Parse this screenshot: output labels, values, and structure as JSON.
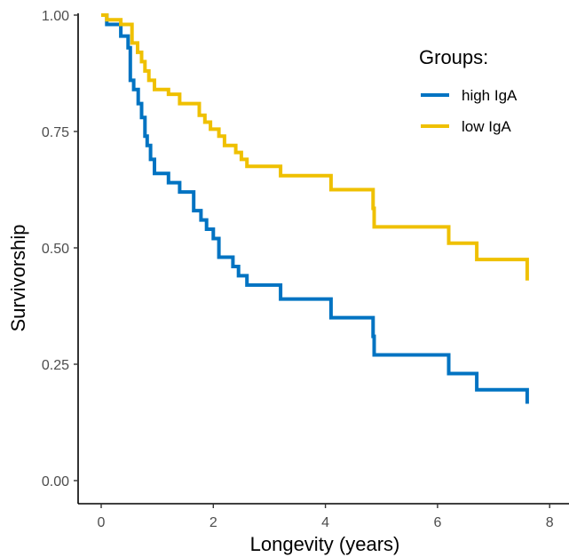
{
  "chart_data": {
    "type": "line",
    "step": true,
    "title": "",
    "xlabel": "Longevity (years)",
    "ylabel": "Survivorship",
    "xlim": [
      -0.4,
      8.0
    ],
    "ylim": [
      -0.05,
      1.0
    ],
    "x_ticks": [
      0,
      2,
      4,
      6,
      8
    ],
    "x_tick_labels": [
      "0",
      "2",
      "4",
      "6",
      "8"
    ],
    "y_ticks": [
      0,
      0.25,
      0.5,
      0.75,
      1.0
    ],
    "y_tick_labels": [
      "0.00",
      "0.25",
      "0.50",
      "0.75",
      "1.00"
    ],
    "grid": false,
    "legend": {
      "title": "Groups:",
      "position": "top-right"
    },
    "series": [
      {
        "name": "high IgA",
        "color": "#0073C2",
        "points": [
          [
            0,
            1.0
          ],
          [
            0.1,
            0.98
          ],
          [
            0.35,
            0.955
          ],
          [
            0.48,
            0.93
          ],
          [
            0.52,
            0.86
          ],
          [
            0.58,
            0.84
          ],
          [
            0.66,
            0.81
          ],
          [
            0.72,
            0.78
          ],
          [
            0.78,
            0.74
          ],
          [
            0.82,
            0.72
          ],
          [
            0.88,
            0.69
          ],
          [
            0.95,
            0.66
          ],
          [
            1.2,
            0.64
          ],
          [
            1.4,
            0.62
          ],
          [
            1.65,
            0.58
          ],
          [
            1.78,
            0.56
          ],
          [
            1.88,
            0.54
          ],
          [
            2.0,
            0.52
          ],
          [
            2.1,
            0.48
          ],
          [
            2.35,
            0.46
          ],
          [
            2.45,
            0.44
          ],
          [
            2.6,
            0.42
          ],
          [
            3.2,
            0.39
          ],
          [
            4.1,
            0.35
          ],
          [
            4.85,
            0.31
          ],
          [
            4.87,
            0.27
          ],
          [
            6.2,
            0.23
          ],
          [
            6.7,
            0.195
          ],
          [
            7.6,
            0.165
          ]
        ],
        "end": 7.6
      },
      {
        "name": "low IgA",
        "color": "#EFC000",
        "points": [
          [
            0,
            1.0
          ],
          [
            0.1,
            0.99
          ],
          [
            0.35,
            0.98
          ],
          [
            0.55,
            0.94
          ],
          [
            0.65,
            0.92
          ],
          [
            0.72,
            0.9
          ],
          [
            0.78,
            0.88
          ],
          [
            0.85,
            0.86
          ],
          [
            0.95,
            0.84
          ],
          [
            1.2,
            0.83
          ],
          [
            1.4,
            0.81
          ],
          [
            1.75,
            0.785
          ],
          [
            1.85,
            0.77
          ],
          [
            1.95,
            0.755
          ],
          [
            2.1,
            0.74
          ],
          [
            2.2,
            0.72
          ],
          [
            2.4,
            0.705
          ],
          [
            2.5,
            0.69
          ],
          [
            2.6,
            0.675
          ],
          [
            3.2,
            0.655
          ],
          [
            4.1,
            0.625
          ],
          [
            4.85,
            0.585
          ],
          [
            4.87,
            0.545
          ],
          [
            6.2,
            0.51
          ],
          [
            6.7,
            0.475
          ],
          [
            7.6,
            0.43
          ]
        ],
        "end": 7.6
      }
    ]
  }
}
